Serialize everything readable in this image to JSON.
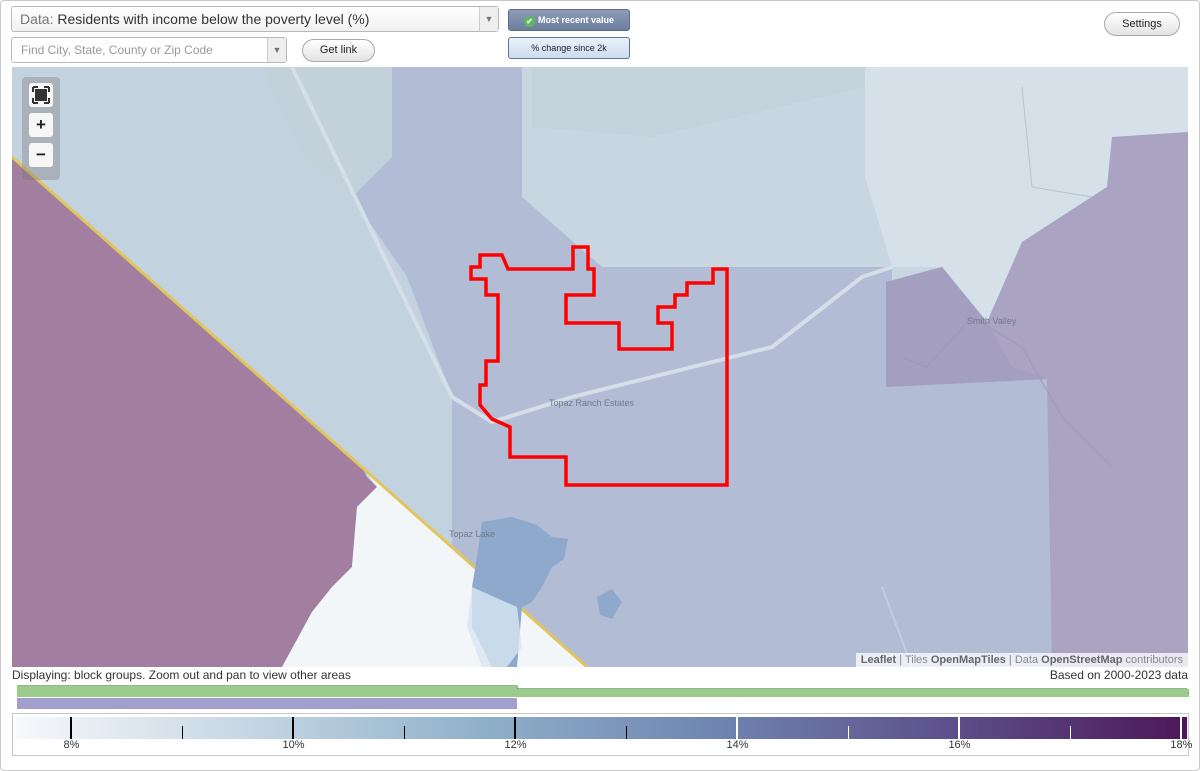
{
  "header": {
    "data_prefix": "Data:",
    "data_value": "Residents with income below the poverty level (%)",
    "find_placeholder": "Find City, State, County or Zip Code",
    "get_link_label": "Get link",
    "settings_label": "Settings",
    "toggle_recent_label": "Most recent value",
    "toggle_change_label": "% change since 2k"
  },
  "map": {
    "labels": {
      "smith_valley": "Smith Valley",
      "topaz_ranch": "Topaz Ranch Estates",
      "topaz_lake": "Topaz Lake"
    },
    "attribution": {
      "leaflet": "Leaflet",
      "tiles_prefix": "Tiles",
      "tiles": "OpenMapTiles",
      "data_prefix": "Data",
      "data": "OpenStreetMap",
      "contributors": "contributors"
    },
    "colors": {
      "selected_outline": "#ff0000",
      "county_line": "#e1c45a"
    }
  },
  "status": {
    "displaying": "Displaying: block groups. Zoom out and pan to view other areas",
    "based_on": "Based on 2000-2023 data",
    "question": "?"
  },
  "legend": {
    "labels": [
      "8%",
      "10%",
      "12%",
      "14%",
      "16%",
      "18%"
    ],
    "range_min": 7.5,
    "range_max": 18.05,
    "colors": {
      "green_bar": "#9ccc8c",
      "purple_bar": "#a29fcf"
    }
  }
}
